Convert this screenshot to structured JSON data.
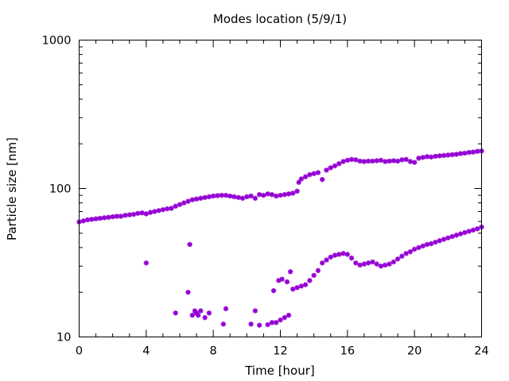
{
  "chart_data": {
    "type": "scatter",
    "title": "Modes location (5/9/1)",
    "xlabel": "Time [hour]",
    "ylabel": "Particle size [nm]",
    "xlim": [
      0,
      24
    ],
    "ylim": [
      10,
      1000
    ],
    "yscale": "log",
    "grid": false,
    "legend": "none",
    "x_ticks": [
      0,
      4,
      8,
      12,
      16,
      20,
      24
    ],
    "x_tick_labels": [
      "0",
      "4",
      "8",
      "12",
      "16",
      "20",
      "24"
    ],
    "y_ticks": [
      10,
      100,
      1000
    ],
    "y_tick_labels": [
      "10",
      "100",
      "1000"
    ],
    "marker_color": "#9400d3",
    "series": [
      {
        "points": [
          [
            0,
            59.5
          ],
          [
            0.25,
            60.5
          ],
          [
            0.5,
            61.5
          ],
          [
            0.75,
            62
          ],
          [
            1,
            62.5
          ],
          [
            1.25,
            63
          ],
          [
            1.5,
            63.5
          ],
          [
            1.75,
            64
          ],
          [
            2,
            64.5
          ],
          [
            2.25,
            65
          ],
          [
            2.5,
            65
          ],
          [
            2.75,
            66
          ],
          [
            3,
            66.5
          ],
          [
            3.25,
            67
          ],
          [
            3.5,
            68
          ],
          [
            3.75,
            68.5
          ],
          [
            4,
            67.5
          ],
          [
            4.25,
            69
          ],
          [
            4.5,
            70
          ],
          [
            4.75,
            71
          ],
          [
            5,
            72
          ],
          [
            5.25,
            73
          ],
          [
            5.5,
            73.5
          ],
          [
            5.75,
            76
          ],
          [
            6,
            78
          ],
          [
            6.25,
            80
          ],
          [
            6.5,
            82
          ],
          [
            6.75,
            84
          ],
          [
            7,
            85
          ],
          [
            7.25,
            86
          ],
          [
            7.5,
            87
          ],
          [
            7.75,
            88
          ],
          [
            8,
            89
          ],
          [
            8.25,
            89.5
          ],
          [
            8.5,
            90
          ],
          [
            8.75,
            90
          ],
          [
            9,
            89
          ],
          [
            9.25,
            88
          ],
          [
            9.5,
            87
          ],
          [
            9.75,
            86
          ],
          [
            10,
            88
          ],
          [
            10.25,
            89
          ],
          [
            10.5,
            86
          ],
          [
            10.75,
            91
          ],
          [
            11,
            90
          ],
          [
            11.25,
            92
          ],
          [
            11.5,
            91
          ],
          [
            11.75,
            89
          ],
          [
            12,
            90
          ],
          [
            12.25,
            91
          ],
          [
            12.5,
            92
          ],
          [
            12.75,
            93
          ],
          [
            13,
            96
          ],
          [
            13.1,
            110
          ],
          [
            13.25,
            116
          ],
          [
            13.5,
            120
          ],
          [
            13.75,
            124
          ],
          [
            14,
            126
          ],
          [
            14.25,
            128
          ],
          [
            14.5,
            115
          ],
          [
            14.75,
            133
          ],
          [
            15,
            138
          ],
          [
            15.25,
            142
          ],
          [
            15.5,
            147
          ],
          [
            15.75,
            152
          ],
          [
            16,
            155
          ],
          [
            16.25,
            157
          ],
          [
            16.5,
            156
          ],
          [
            16.75,
            153
          ],
          [
            17,
            152
          ],
          [
            17.25,
            153
          ],
          [
            17.5,
            153
          ],
          [
            17.75,
            154
          ],
          [
            18,
            155
          ],
          [
            18.25,
            152
          ],
          [
            18.5,
            153
          ],
          [
            18.75,
            154
          ],
          [
            19,
            153
          ],
          [
            19.25,
            156
          ],
          [
            19.5,
            157
          ],
          [
            19.75,
            152
          ],
          [
            20,
            150
          ],
          [
            20.25,
            160
          ],
          [
            20.5,
            162
          ],
          [
            20.75,
            164
          ],
          [
            21,
            163
          ],
          [
            21.25,
            165
          ],
          [
            21.5,
            166
          ],
          [
            21.75,
            167
          ],
          [
            22,
            168
          ],
          [
            22.25,
            169
          ],
          [
            22.5,
            170
          ],
          [
            22.75,
            172
          ],
          [
            23,
            173
          ],
          [
            23.25,
            175
          ],
          [
            23.5,
            176
          ],
          [
            23.75,
            178
          ],
          [
            24,
            179
          ]
        ]
      },
      {
        "points": [
          [
            4,
            31.5
          ],
          [
            5.75,
            14.5
          ],
          [
            6.5,
            20
          ],
          [
            6.6,
            42
          ],
          [
            6.75,
            14
          ],
          [
            6.9,
            15
          ],
          [
            7,
            14.5
          ],
          [
            7.1,
            14
          ],
          [
            7.25,
            15
          ],
          [
            7.5,
            13.5
          ],
          [
            7.75,
            14.5
          ],
          [
            8.6,
            12.2
          ],
          [
            8.75,
            15.5
          ],
          [
            10.25,
            12.2
          ],
          [
            10.5,
            15
          ],
          [
            10.75,
            12
          ],
          [
            11.25,
            12.1
          ],
          [
            11.5,
            12.5
          ],
          [
            11.6,
            20.5
          ],
          [
            11.75,
            12.5
          ],
          [
            11.9,
            24
          ],
          [
            12,
            13
          ],
          [
            12.1,
            24.5
          ],
          [
            12.25,
            13.5
          ],
          [
            12.4,
            23.5
          ],
          [
            12.5,
            14
          ],
          [
            12.6,
            27.5
          ],
          [
            12.75,
            21
          ],
          [
            13,
            21.5
          ],
          [
            13.25,
            22
          ],
          [
            13.5,
            22.5
          ],
          [
            13.75,
            24
          ],
          [
            14,
            26
          ],
          [
            14.25,
            28
          ],
          [
            14.5,
            31.5
          ],
          [
            14.75,
            33
          ],
          [
            15,
            34.5
          ],
          [
            15.25,
            35.5
          ],
          [
            15.5,
            36
          ],
          [
            15.75,
            36.5
          ],
          [
            16,
            36
          ],
          [
            16.25,
            34
          ],
          [
            16.5,
            31.5
          ],
          [
            16.75,
            30.5
          ],
          [
            17,
            31
          ],
          [
            17.25,
            31.5
          ],
          [
            17.5,
            32
          ],
          [
            17.75,
            31
          ],
          [
            18,
            30
          ],
          [
            18.25,
            30.5
          ],
          [
            18.5,
            31
          ],
          [
            18.75,
            32
          ],
          [
            19,
            33.5
          ],
          [
            19.25,
            35
          ],
          [
            19.5,
            36.5
          ],
          [
            19.75,
            37.5
          ],
          [
            20,
            39
          ],
          [
            20.25,
            40
          ],
          [
            20.5,
            41
          ],
          [
            20.75,
            42
          ],
          [
            21,
            42.5
          ],
          [
            21.25,
            43.5
          ],
          [
            21.5,
            44.5
          ],
          [
            21.75,
            45.5
          ],
          [
            22,
            46.5
          ],
          [
            22.25,
            47.5
          ],
          [
            22.5,
            48.5
          ],
          [
            22.75,
            49.5
          ],
          [
            23,
            50.5
          ],
          [
            23.25,
            51.5
          ],
          [
            23.5,
            52.5
          ],
          [
            23.75,
            53.5
          ],
          [
            24,
            55
          ]
        ]
      }
    ]
  }
}
